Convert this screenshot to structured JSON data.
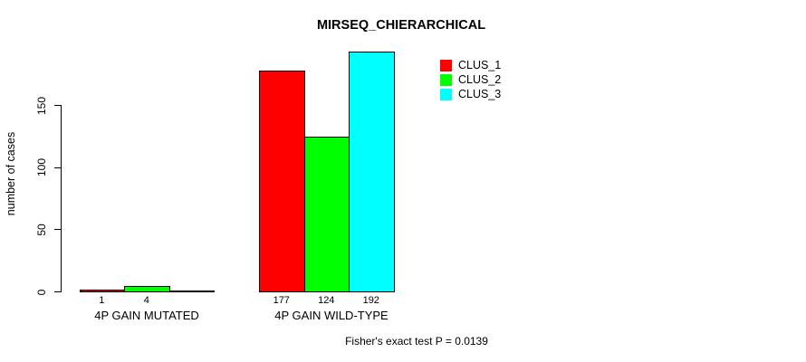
{
  "chart_data": {
    "type": "bar",
    "title": "MIRSEQ_CHIERARCHICAL",
    "ylabel": "number of cases",
    "xlabel": "",
    "categories": [
      "4P GAIN MUTATED",
      "4P GAIN WILD-TYPE"
    ],
    "series": [
      {
        "name": "CLUS_1",
        "color": "#ff0000",
        "values": [
          1,
          177
        ]
      },
      {
        "name": "CLUS_2",
        "color": "#00ff00",
        "values": [
          4,
          124
        ]
      },
      {
        "name": "CLUS_3",
        "color": "#00ffff",
        "values": [
          0,
          192
        ]
      }
    ],
    "bar_value_labels": [
      [
        "1",
        "4",
        ""
      ],
      [
        "177",
        "124",
        "192"
      ]
    ],
    "yticks": [
      0,
      50,
      100,
      150
    ],
    "ylim": [
      0,
      195
    ],
    "grid": false,
    "legend": {
      "position": "top-right",
      "items": [
        {
          "label": "CLUS_1",
          "color": "#ff0000"
        },
        {
          "label": "CLUS_2",
          "color": "#00ff00"
        },
        {
          "label": "CLUS_3",
          "color": "#00ffff"
        }
      ]
    },
    "annotation": "Fisher's exact test P = 0.0139",
    "bar_border_color": "#000000",
    "axis_color": "#000000",
    "text_color": "#000000",
    "background_color": "#ffffff"
  }
}
